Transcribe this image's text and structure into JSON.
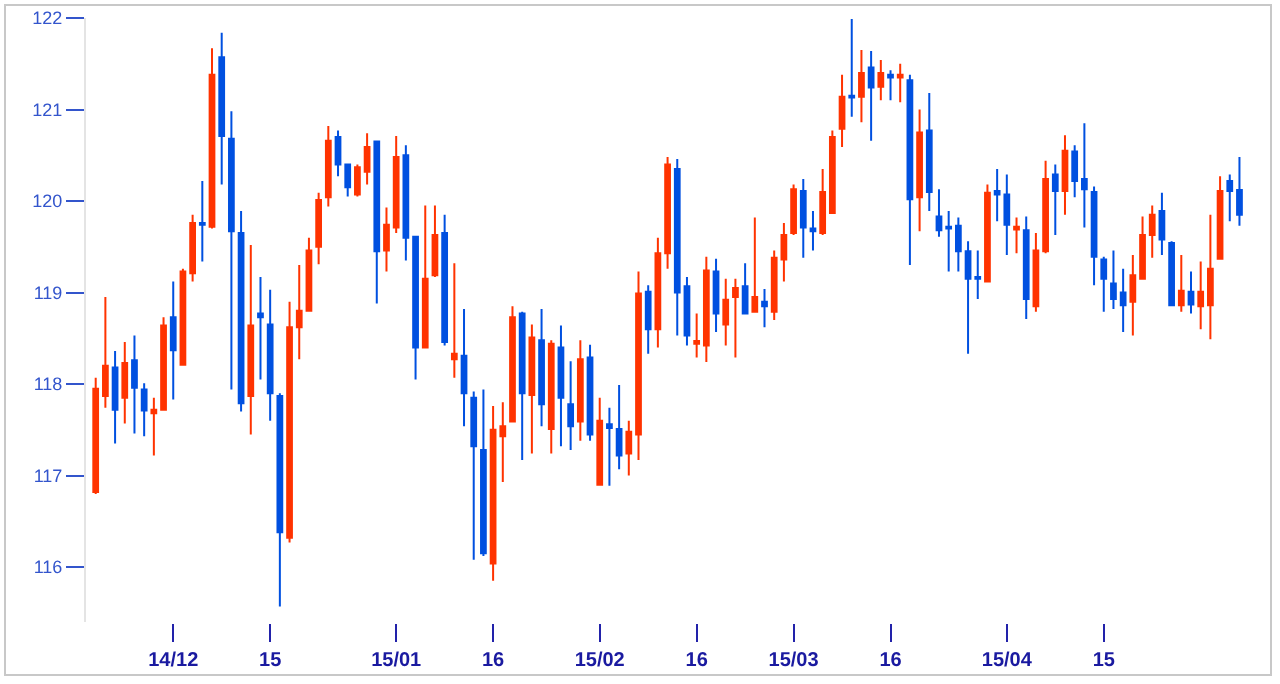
{
  "chart_data": {
    "type": "candlestick",
    "categories": [
      null,
      null,
      null,
      null,
      null,
      null,
      null,
      null,
      "14/12",
      null,
      null,
      null,
      null,
      null,
      null,
      null,
      null,
      null,
      "15",
      null,
      null,
      null,
      null,
      null,
      null,
      null,
      null,
      null,
      null,
      null,
      null,
      "15/01",
      null,
      null,
      null,
      null,
      null,
      null,
      null,
      null,
      null,
      "16",
      null,
      null,
      null,
      null,
      null,
      null,
      null,
      null,
      null,
      null,
      "15/02",
      null,
      null,
      null,
      null,
      null,
      null,
      null,
      null,
      null,
      "16",
      null,
      null,
      null,
      null,
      null,
      null,
      null,
      null,
      null,
      "15/03",
      null,
      null,
      null,
      null,
      null,
      null,
      null,
      null,
      null,
      "16",
      null,
      null,
      null,
      null,
      null,
      null,
      null,
      null,
      null,
      null,
      null,
      "15/04",
      null,
      null,
      null,
      null,
      null,
      null,
      null,
      null,
      null,
      "15",
      null,
      null,
      null,
      null,
      null,
      null,
      null,
      null,
      null,
      null,
      null,
      null,
      null,
      null
    ],
    "ohlc": [
      [
        116.82,
        118.07,
        116.8,
        117.95
      ],
      [
        117.87,
        118.95,
        117.74,
        118.2
      ],
      [
        118.18,
        118.36,
        117.35,
        117.72
      ],
      [
        117.85,
        118.46,
        117.57,
        118.23
      ],
      [
        118.26,
        118.53,
        117.46,
        117.96
      ],
      [
        117.94,
        118.01,
        117.43,
        117.71
      ],
      [
        117.68,
        117.85,
        117.22,
        117.72
      ],
      [
        117.72,
        118.73,
        117.72,
        118.64
      ],
      [
        118.73,
        119.12,
        117.83,
        118.37
      ],
      [
        118.21,
        119.26,
        118.2,
        119.23
      ],
      [
        119.21,
        119.85,
        119.12,
        119.76
      ],
      [
        119.76,
        120.22,
        119.34,
        119.74
      ],
      [
        119.72,
        121.67,
        119.7,
        121.38
      ],
      [
        121.57,
        121.84,
        120.18,
        120.71
      ],
      [
        120.68,
        120.98,
        117.94,
        119.67
      ],
      [
        119.65,
        119.89,
        117.7,
        117.79
      ],
      [
        117.87,
        119.52,
        117.45,
        118.64
      ],
      [
        118.77,
        119.17,
        118.05,
        118.73
      ],
      [
        118.65,
        119.03,
        117.6,
        117.9
      ],
      [
        117.87,
        117.9,
        115.57,
        116.38
      ],
      [
        116.32,
        118.9,
        116.27,
        118.62
      ],
      [
        118.62,
        119.3,
        118.27,
        118.8
      ],
      [
        118.8,
        119.6,
        118.79,
        119.46
      ],
      [
        119.5,
        120.09,
        119.31,
        120.01
      ],
      [
        120.04,
        120.82,
        119.94,
        120.66
      ],
      [
        120.7,
        120.77,
        120.27,
        120.4
      ],
      [
        120.4,
        120.41,
        120.05,
        120.15
      ],
      [
        120.07,
        120.4,
        120.05,
        120.37
      ],
      [
        120.32,
        120.74,
        120.18,
        120.59
      ],
      [
        120.65,
        120.66,
        118.88,
        119.45
      ],
      [
        119.46,
        119.93,
        119.23,
        119.74
      ],
      [
        119.71,
        120.71,
        119.65,
        120.48
      ],
      [
        120.5,
        120.61,
        119.35,
        119.6
      ],
      [
        119.61,
        119.61,
        118.05,
        118.4
      ],
      [
        118.4,
        119.95,
        118.4,
        119.15
      ],
      [
        119.19,
        119.95,
        119.17,
        119.63
      ],
      [
        119.65,
        119.85,
        118.42,
        118.46
      ],
      [
        118.27,
        119.32,
        118.07,
        118.33
      ],
      [
        118.31,
        118.82,
        117.54,
        117.9
      ],
      [
        117.85,
        117.92,
        116.08,
        117.32
      ],
      [
        117.28,
        117.94,
        116.12,
        116.15
      ],
      [
        116.04,
        117.76,
        115.85,
        117.5
      ],
      [
        117.43,
        117.8,
        116.93,
        117.54
      ],
      [
        117.59,
        118.85,
        117.58,
        118.73
      ],
      [
        118.77,
        118.79,
        117.17,
        117.9
      ],
      [
        117.88,
        118.65,
        117.24,
        118.51
      ],
      [
        118.48,
        118.82,
        117.54,
        117.78
      ],
      [
        117.51,
        118.48,
        117.24,
        118.44
      ],
      [
        118.4,
        118.64,
        117.32,
        117.85
      ],
      [
        117.78,
        118.25,
        117.28,
        117.54
      ],
      [
        117.59,
        118.48,
        117.38,
        118.27
      ],
      [
        118.29,
        118.43,
        117.38,
        117.45
      ],
      [
        116.9,
        117.85,
        116.9,
        117.6
      ],
      [
        117.56,
        117.74,
        116.89,
        117.52
      ],
      [
        117.51,
        117.99,
        117.07,
        117.22
      ],
      [
        117.24,
        117.6,
        117.0,
        117.48
      ],
      [
        117.45,
        119.23,
        117.17,
        118.99
      ],
      [
        119.01,
        119.08,
        118.33,
        118.6
      ],
      [
        118.6,
        119.6,
        118.4,
        119.43
      ],
      [
        119.43,
        120.48,
        119.26,
        120.4
      ],
      [
        120.35,
        120.46,
        118.53,
        119.0
      ],
      [
        119.07,
        119.17,
        118.42,
        118.53
      ],
      [
        118.44,
        118.77,
        118.29,
        118.47
      ],
      [
        118.42,
        119.39,
        118.24,
        119.24
      ],
      [
        119.23,
        119.37,
        118.57,
        118.77
      ],
      [
        118.65,
        119.15,
        118.42,
        118.92
      ],
      [
        118.95,
        119.15,
        118.29,
        119.05
      ],
      [
        119.07,
        119.32,
        118.76,
        118.77
      ],
      [
        118.79,
        119.82,
        118.78,
        118.95
      ],
      [
        118.9,
        119.04,
        118.62,
        118.85
      ],
      [
        118.79,
        119.46,
        118.7,
        119.38
      ],
      [
        119.36,
        119.76,
        119.12,
        119.63
      ],
      [
        119.65,
        120.18,
        119.63,
        120.13
      ],
      [
        120.11,
        120.24,
        119.38,
        119.71
      ],
      [
        119.7,
        119.89,
        119.46,
        119.67
      ],
      [
        119.65,
        120.35,
        119.63,
        120.1
      ],
      [
        119.87,
        120.77,
        119.86,
        120.7
      ],
      [
        120.79,
        121.38,
        120.59,
        121.14
      ],
      [
        121.15,
        121.99,
        120.92,
        121.13
      ],
      [
        121.14,
        121.65,
        120.86,
        121.4
      ],
      [
        121.46,
        121.64,
        120.66,
        121.24
      ],
      [
        121.25,
        121.54,
        121.1,
        121.4
      ],
      [
        121.38,
        121.43,
        121.1,
        121.35
      ],
      [
        121.35,
        121.5,
        121.08,
        121.38
      ],
      [
        121.32,
        121.38,
        119.3,
        120.02
      ],
      [
        120.04,
        121.0,
        119.67,
        120.75
      ],
      [
        120.77,
        121.18,
        119.89,
        120.1
      ],
      [
        119.83,
        120.13,
        119.61,
        119.68
      ],
      [
        119.72,
        119.89,
        119.23,
        119.7
      ],
      [
        119.73,
        119.82,
        119.23,
        119.45
      ],
      [
        119.45,
        119.56,
        118.33,
        119.15
      ],
      [
        119.17,
        119.46,
        118.93,
        119.15
      ],
      [
        119.12,
        120.18,
        119.11,
        120.09
      ],
      [
        120.11,
        120.35,
        119.78,
        120.07
      ],
      [
        120.07,
        120.29,
        119.41,
        119.74
      ],
      [
        119.69,
        119.82,
        119.43,
        119.72
      ],
      [
        119.68,
        119.83,
        118.71,
        118.93
      ],
      [
        118.85,
        119.65,
        118.79,
        119.46
      ],
      [
        119.45,
        120.44,
        119.43,
        120.24
      ],
      [
        120.29,
        120.4,
        119.63,
        120.11
      ],
      [
        120.11,
        120.72,
        119.85,
        120.55
      ],
      [
        120.54,
        120.61,
        120.04,
        120.22
      ],
      [
        120.24,
        120.85,
        119.71,
        120.13
      ],
      [
        120.1,
        120.16,
        119.08,
        119.39
      ],
      [
        119.36,
        119.39,
        118.79,
        119.15
      ],
      [
        119.1,
        119.46,
        118.82,
        118.93
      ],
      [
        119.0,
        119.26,
        118.57,
        118.86
      ],
      [
        118.9,
        119.41,
        118.53,
        119.19
      ],
      [
        119.15,
        119.83,
        119.14,
        119.63
      ],
      [
        119.63,
        119.95,
        119.38,
        119.85
      ],
      [
        119.89,
        120.09,
        119.41,
        119.58
      ],
      [
        119.54,
        119.56,
        118.85,
        118.86
      ],
      [
        118.86,
        119.41,
        118.79,
        119.02
      ],
      [
        119.01,
        119.23,
        118.77,
        118.87
      ],
      [
        118.85,
        119.34,
        118.6,
        119.01
      ],
      [
        118.86,
        119.85,
        118.49,
        119.26
      ],
      [
        119.37,
        120.27,
        119.36,
        120.11
      ],
      [
        120.22,
        120.29,
        119.78,
        120.11
      ],
      [
        120.12,
        120.48,
        119.73,
        119.85
      ]
    ],
    "colors": [
      "#ff3300",
      "#ff3300",
      "#0050e0",
      "#ff3300",
      "#0050e0",
      "#0050e0",
      "#ff3300",
      "#ff3300",
      "#0050e0",
      "#ff3300",
      "#ff3300",
      "#0050e0",
      "#ff3300",
      "#0050e0",
      "#0050e0",
      "#0050e0",
      "#ff3300",
      "#0050e0",
      "#0050e0",
      "#0050e0",
      "#ff3300",
      "#ff3300",
      "#ff3300",
      "#ff3300",
      "#ff3300",
      "#0050e0",
      "#0050e0",
      "#ff3300",
      "#ff3300",
      "#0050e0",
      "#ff3300",
      "#ff3300",
      "#0050e0",
      "#0050e0",
      "#ff3300",
      "#ff3300",
      "#0050e0",
      "#ff3300",
      "#0050e0",
      "#0050e0",
      "#0050e0",
      "#ff3300",
      "#ff3300",
      "#ff3300",
      "#0050e0",
      "#ff3300",
      "#0050e0",
      "#ff3300",
      "#0050e0",
      "#0050e0",
      "#ff3300",
      "#0050e0",
      "#ff3300",
      "#0050e0",
      "#0050e0",
      "#ff3300",
      "#ff3300",
      "#0050e0",
      "#ff3300",
      "#ff3300",
      "#0050e0",
      "#0050e0",
      "#ff3300",
      "#ff3300",
      "#0050e0",
      "#ff3300",
      "#ff3300",
      "#0050e0",
      "#ff3300",
      "#0050e0",
      "#ff3300",
      "#ff3300",
      "#ff3300",
      "#0050e0",
      "#0050e0",
      "#ff3300",
      "#ff3300",
      "#ff3300",
      "#0050e0",
      "#ff3300",
      "#0050e0",
      "#ff3300",
      "#0050e0",
      "#ff3300",
      "#0050e0",
      "#ff3300",
      "#0050e0",
      "#0050e0",
      "#0050e0",
      "#0050e0",
      "#0050e0",
      "#0050e0",
      "#ff3300",
      "#0050e0",
      "#0050e0",
      "#ff3300",
      "#0050e0",
      "#ff3300",
      "#ff3300",
      "#0050e0",
      "#ff3300",
      "#0050e0",
      "#0050e0",
      "#0050e0",
      "#0050e0",
      "#0050e0",
      "#0050e0",
      "#ff3300",
      "#ff3300",
      "#ff3300",
      "#0050e0",
      "#0050e0",
      "#ff3300",
      "#0050e0",
      "#ff3300",
      "#ff3300",
      "#ff3300",
      "#0050e0",
      "#0050e0"
    ],
    "ylim": [
      115.4,
      122
    ],
    "yticks": [
      116,
      117,
      118,
      119,
      120,
      121,
      122
    ],
    "grid": false
  }
}
